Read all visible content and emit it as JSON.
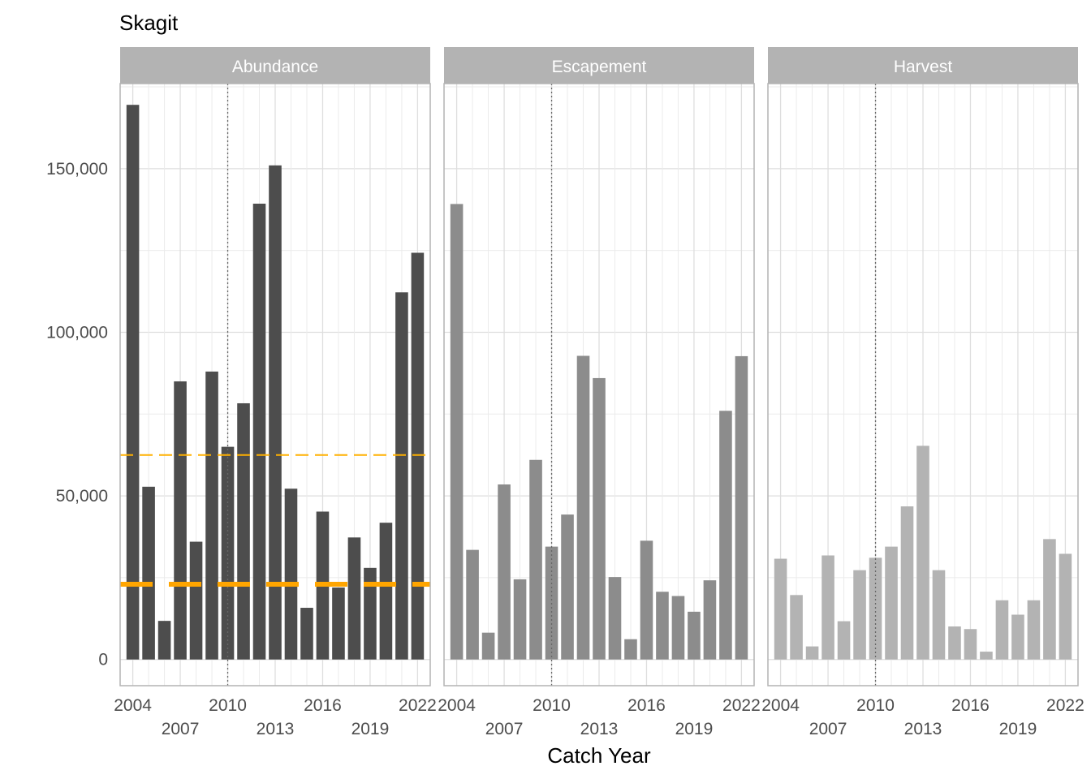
{
  "chart_data": {
    "type": "bar",
    "title": "Skagit",
    "xlabel": "Catch Year",
    "ylabel": "",
    "ylim": [
      -8000,
      176000
    ],
    "y_ticks": [
      0,
      50000,
      100000,
      150000
    ],
    "y_tick_labels": [
      "0",
      "50,000",
      "100,000",
      "150,000"
    ],
    "x_range": [
      2003.2,
      2022.8
    ],
    "x_ticks_row1": [
      2004,
      2010,
      2016,
      2022
    ],
    "x_ticks_row2": [
      2007,
      2013,
      2019
    ],
    "grid": true,
    "years": [
      2004,
      2005,
      2006,
      2007,
      2008,
      2009,
      2010,
      2011,
      2012,
      2013,
      2014,
      2015,
      2016,
      2017,
      2018,
      2019,
      2020,
      2021,
      2022
    ],
    "reference_year": 2010,
    "panels": [
      {
        "name": "Abundance",
        "color": "#4d4d4d",
        "values": [
          169500,
          52800,
          11800,
          85000,
          36000,
          88000,
          65000,
          78300,
          139300,
          151000,
          52200,
          15800,
          45200,
          22000,
          37300,
          28000,
          41800,
          112200,
          124300
        ],
        "reference_lines": [
          {
            "value": 62500,
            "style": "dashed-thin",
            "color": "#ffb000"
          },
          {
            "value": 23000,
            "style": "dashed-thick",
            "color": "#ffa500"
          }
        ]
      },
      {
        "name": "Escapement",
        "color": "#8c8c8c",
        "values": [
          139200,
          33500,
          8200,
          53500,
          24500,
          61000,
          34500,
          44300,
          92800,
          86000,
          25200,
          6200,
          36300,
          20700,
          19400,
          14600,
          24200,
          76000,
          92700
        ],
        "reference_lines": []
      },
      {
        "name": "Harvest",
        "color": "#b3b3b3",
        "values": [
          30800,
          19700,
          4000,
          31800,
          11700,
          27300,
          31100,
          34500,
          46800,
          65300,
          27300,
          10100,
          9300,
          2400,
          18100,
          13700,
          18100,
          36800,
          32300
        ],
        "reference_lines": []
      }
    ]
  }
}
